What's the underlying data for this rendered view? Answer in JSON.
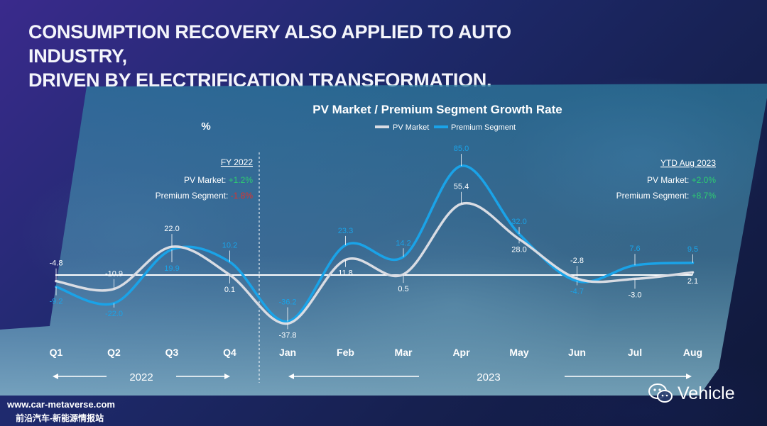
{
  "headline": {
    "line1": "CONSUMPTION RECOVERY ALSO APPLIED TO AUTO INDUSTRY,",
    "line2": "DRIVEN BY ELECTRIFICATION TRANSFORMATION."
  },
  "chart_data": {
    "type": "line",
    "title": "PV Market / Premium Segment Growth Rate",
    "ylabel": "%",
    "categories": [
      "Q1",
      "Q2",
      "Q3",
      "Q4",
      "Jan",
      "Feb",
      "Mar",
      "Apr",
      "May",
      "Jun",
      "Jul",
      "Aug"
    ],
    "series": [
      {
        "name": "PV Market",
        "color": "#d9dce3",
        "values": [
          -4.8,
          -10.9,
          22.0,
          0.1,
          -37.8,
          11.8,
          0.5,
          55.4,
          28.0,
          -2.8,
          -3.0,
          2.1
        ],
        "labels": [
          "-4.8",
          "-10.9",
          "22.0",
          "0.1",
          "-37.8",
          "11.8",
          "0.5",
          "55.4",
          "28.0",
          "-2.8",
          "-3.0",
          "2.1"
        ]
      },
      {
        "name": "Premium Segment",
        "color": "#1aa3e8",
        "values": [
          -9.2,
          -22.0,
          19.9,
          10.2,
          -36.2,
          23.3,
          14.2,
          85.0,
          32.0,
          -4.7,
          7.6,
          9.5
        ],
        "labels": [
          "-9.2",
          "-22.0",
          "19.9",
          "10.2",
          "-36.2",
          "23.3",
          "14.2",
          "85.0",
          "32.0",
          "-4.7",
          "7.6",
          "9.5"
        ]
      }
    ],
    "legend_placement": "top-center",
    "groups": [
      {
        "label": "2022"
      },
      {
        "label": "2023"
      }
    ],
    "annotations": {
      "fy2022": {
        "title": "FY 2022",
        "pv_label": "PV Market:",
        "pv_value": "+1.2%",
        "prem_label": "Premium Segment:",
        "prem_value": "-1.8%"
      },
      "ytd2023": {
        "title": "YTD Aug 2023",
        "pv_label": "PV Market:",
        "pv_value": "+2.0%",
        "prem_label": "Premium Segment:",
        "prem_value": "+8.7%"
      }
    },
    "colors": {
      "positive": "#2ecc71",
      "negative": "#e0312b"
    }
  },
  "watermarks": {
    "left1": "www.car-metaverse.com",
    "left2": "前沿汽车-新能源情报站",
    "right": "Vehicle"
  }
}
